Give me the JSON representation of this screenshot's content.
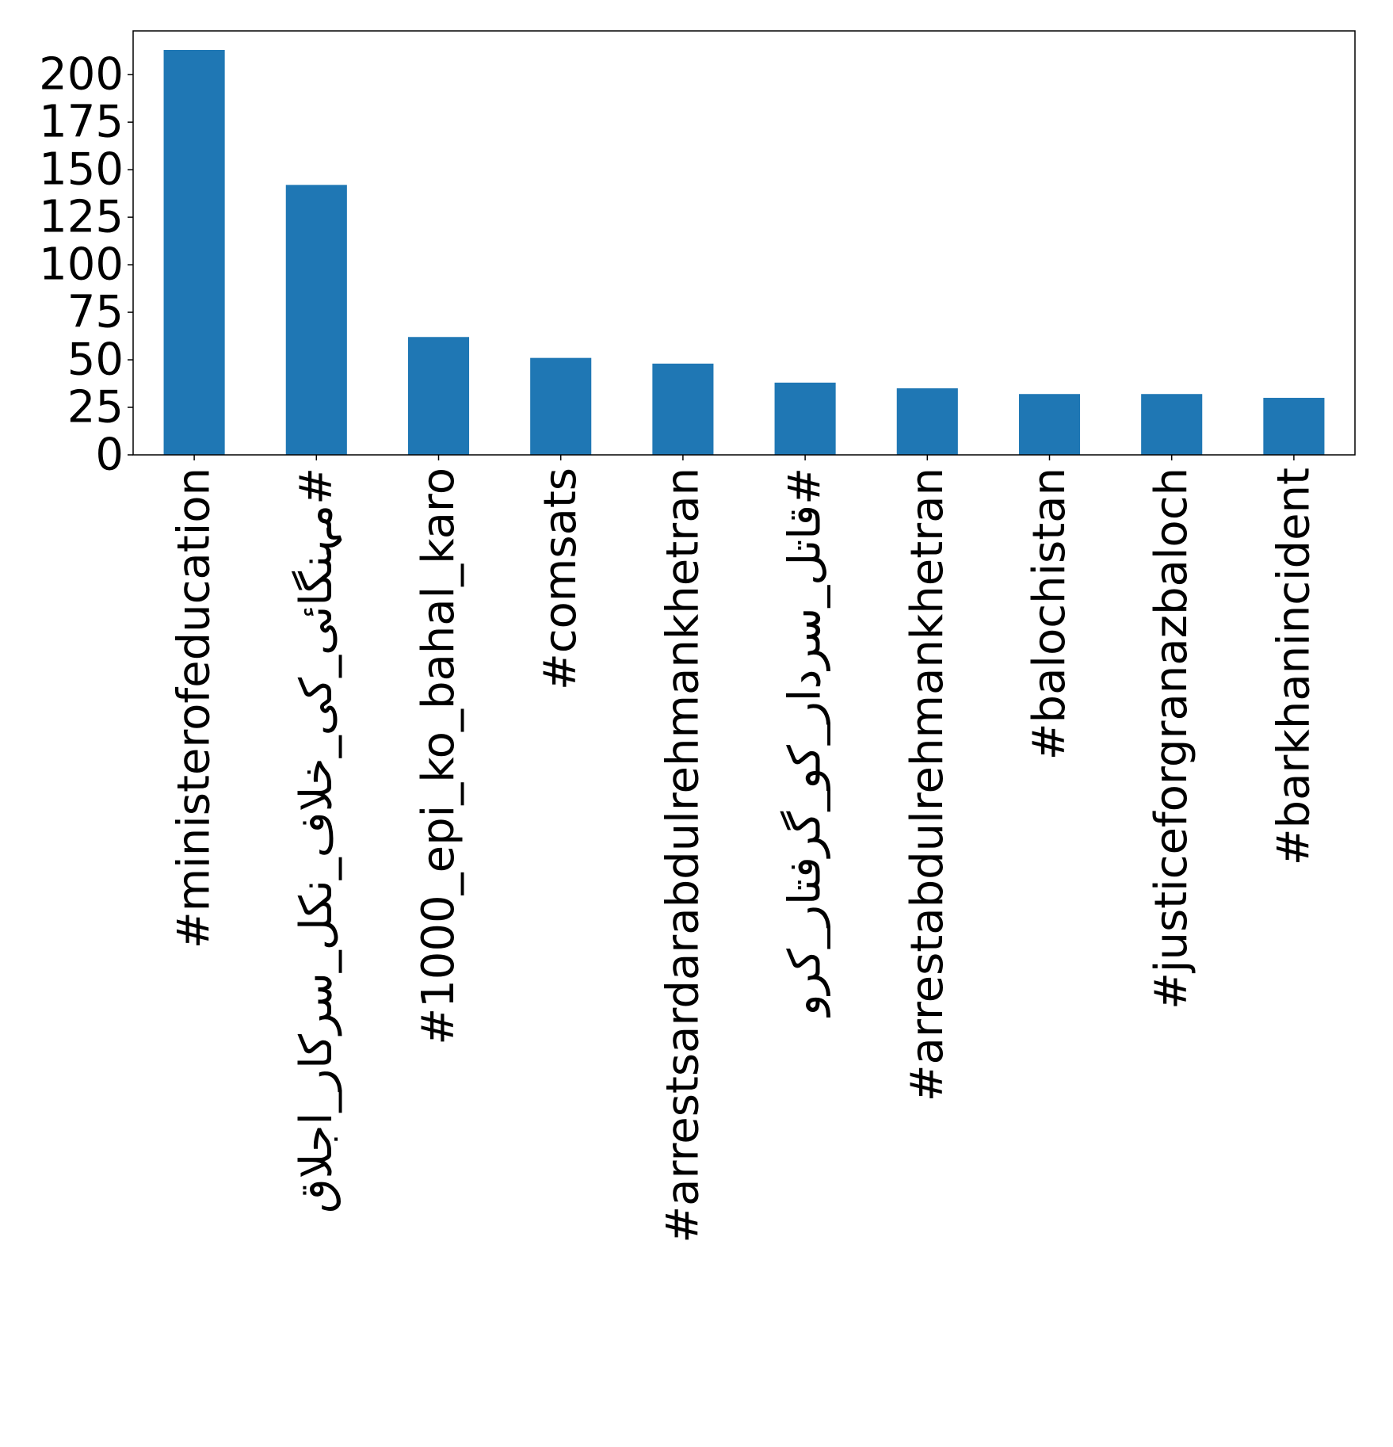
{
  "chart_data": {
    "type": "bar",
    "title": "",
    "xlabel": "",
    "ylabel": "",
    "categories": [
      "#ministerofeducation",
      "#مہنگائی_کی_خلاف_نکل_سرکار_اجلاق",
      "#1000_epi_ko_bahal_karo",
      "#comsats",
      "#arrestsardarabdulrehmankhetran",
      "#قاتل_سردار_کو_گرفتار_کرو",
      "#arrestabdulrehmankhetran",
      "#balochistan",
      "#justiceforgranazbaloch",
      "#barkhanincident"
    ],
    "values": [
      213,
      142,
      62,
      51,
      48,
      38,
      35,
      32,
      32,
      30
    ],
    "ylim": [
      0,
      223
    ],
    "yticks": [
      0,
      25,
      50,
      75,
      100,
      125,
      150,
      175,
      200
    ],
    "ytick_labels": [
      "0",
      "25",
      "50",
      "75",
      "100",
      "125",
      "150",
      "175",
      "200"
    ],
    "grid": false,
    "legend": "none",
    "colors": {
      "bar": "#1f77b4",
      "axes": "#000000",
      "background": "#ffffff"
    }
  }
}
